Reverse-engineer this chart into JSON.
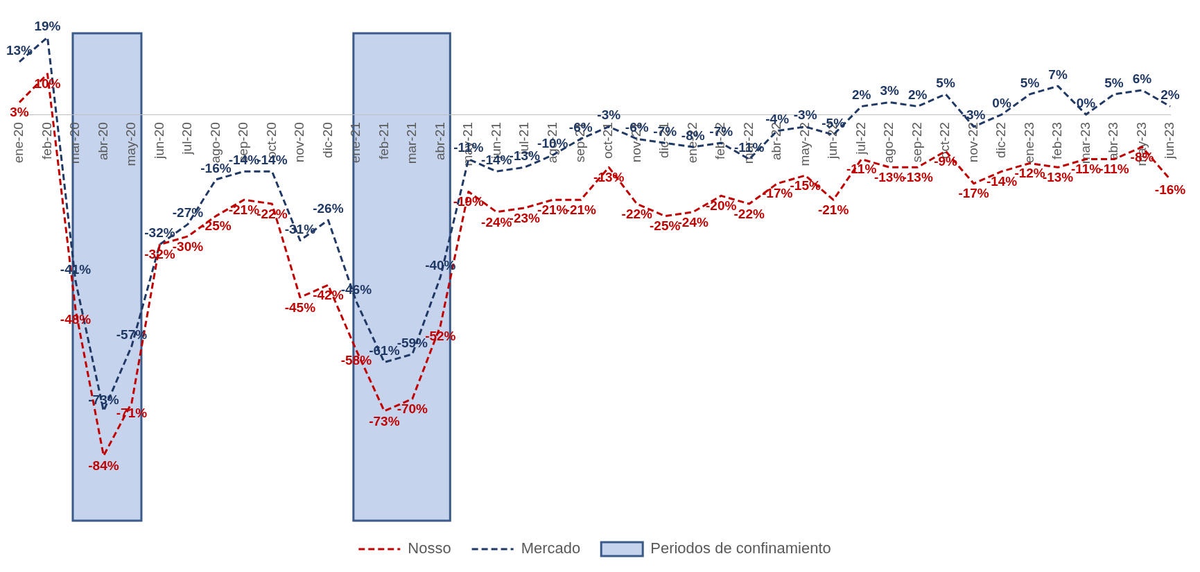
{
  "chart_data": {
    "type": "line",
    "categories": [
      "ene-20",
      "feb-20",
      "mar-20",
      "abr-20",
      "may-20",
      "jun-20",
      "jul-20",
      "ago-20",
      "sep-20",
      "oct-20",
      "nov-20",
      "dic-20",
      "ene-21",
      "feb-21",
      "mar-21",
      "abr-21",
      "may-21",
      "jun-21",
      "jul-21",
      "ago-21",
      "sep-21",
      "oct-21",
      "nov-21",
      "dic-21",
      "ene-22",
      "feb-22",
      "mar-22",
      "abr-22",
      "may-22",
      "jun-22",
      "jul-22",
      "ago-22",
      "sep-22",
      "oct-22",
      "nov-22",
      "dic-22",
      "ene-23",
      "feb-23",
      "mar-23",
      "abr-23",
      "may-23",
      "jun-23"
    ],
    "series": [
      {
        "name": "Nosso",
        "color": "#c00000",
        "values": [
          3,
          10,
          -48,
          -84,
          -71,
          -32,
          -30,
          -25,
          -21,
          -22,
          -45,
          -42,
          -58,
          -73,
          -70,
          -52,
          -19,
          -24,
          -23,
          -21,
          -21,
          -13,
          -22,
          -25,
          -24,
          -20,
          -22,
          -17,
          -15,
          -21,
          -11,
          -13,
          -13,
          -9,
          -17,
          -14,
          -12,
          -13,
          -11,
          -11,
          -8,
          -16
        ],
        "value_labels": [
          "3%",
          "10%",
          "-48%",
          "-84%",
          "-71%",
          "-32%",
          "-30%",
          "-25%",
          "-21%",
          "-22%",
          "-45%",
          "-42%",
          "-58%",
          "-73%",
          "-70%",
          "-52%",
          "-19%",
          "-24%",
          "-23%",
          "-21%",
          "-21%",
          "-13%",
          "-22%",
          "-25%",
          "-24%",
          "-20%",
          "-22%",
          "-17%",
          "-15%",
          "-21%",
          "-11%",
          "-13%",
          "-13%",
          "-9%",
          "-17%",
          "-14%",
          "-12%",
          "-13%",
          "-11%",
          "-11%",
          "-8%",
          "-16%"
        ]
      },
      {
        "name": "Mercado",
        "color": "#1f3864",
        "values": [
          13,
          19,
          -41,
          -73,
          -57,
          -32,
          -27,
          -16,
          -14,
          -14,
          -31,
          -26,
          -46,
          -61,
          -59,
          -40,
          -11,
          -14,
          -13,
          -10,
          -6,
          -3,
          -6,
          -7,
          -8,
          -7,
          -11,
          -4,
          -3,
          -5,
          2,
          3,
          2,
          5,
          -3,
          0,
          5,
          7,
          0,
          5,
          6,
          2
        ],
        "value_labels": [
          "13%",
          "19%",
          "-41%",
          "-73%",
          "-57%",
          "-32%",
          "-27%",
          "-16%",
          "-14%",
          "-14%",
          "-31%",
          "-26%",
          "-46%",
          "-61%",
          "-59%",
          "-40%",
          "-11%",
          "-14%",
          "-13%",
          "-10%",
          "-6%",
          "-3%",
          "-6%",
          "-7%",
          "-8%",
          "-7%",
          "-11%",
          "-4%",
          "-3%",
          "-5%",
          "2%",
          "3%",
          "2%",
          "5%",
          "-3%",
          "0%",
          "5%",
          "7%",
          "0%",
          "5%",
          "6%",
          "2%"
        ]
      }
    ],
    "bands": [
      {
        "axis": "x",
        "from": "mar-20",
        "to": "may-20",
        "label": "Periodos de confinamiento",
        "color": "#c5d3ec"
      },
      {
        "axis": "x",
        "from": "ene-21",
        "to": "abr-21",
        "color": "#c5d3ec"
      }
    ],
    "tick_labels": "x",
    "line_style": "dashed",
    "marker": "none",
    "grid": false,
    "legend": "bottom"
  }
}
